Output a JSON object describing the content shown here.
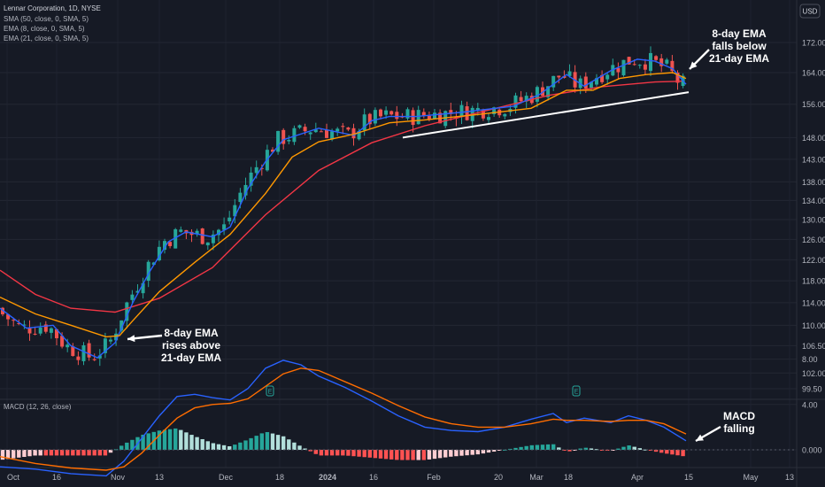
{
  "header": {
    "title": "Lennar Corporation, 1D, NYSE",
    "indicators": [
      "SMA (50, close, 0, SMA, 5)",
      "EMA (8, close, 0, SMA, 5)",
      "EMA (21, close, 0, SMA, 5)"
    ],
    "currency": "USD"
  },
  "macd_label": "MACD (12, 26, close)",
  "annotations": {
    "cross_up": [
      "8-day EMA",
      "rises above",
      "21-day EMA"
    ],
    "cross_down": [
      "8-day EMA",
      "falls below",
      "21-day EMA"
    ],
    "macd": [
      "MACD",
      "falling"
    ]
  },
  "earnings_marker": "E",
  "x_ticks": [
    "Oct",
    "16",
    "Nov",
    "13",
    "Dec",
    "18",
    "2024",
    "16",
    "Feb",
    "20",
    "Mar",
    "18",
    "Apr",
    "15",
    "May",
    "13"
  ],
  "colors": {
    "up": "#26a69a",
    "down": "#ef5350",
    "sma50": "#f23645",
    "ema8": "#2962ff",
    "ema21": "#ff9800",
    "macd_line": "#2962ff",
    "signal_line": "#ff6d00",
    "bg": "#161a25"
  },
  "chart_data": [
    {
      "type": "candlestick",
      "title": "Lennar Corporation, 1D, NYSE",
      "y_axis": {
        "scale": "log",
        "ticks": [
          99.5,
          102.0,
          106.5,
          110.0,
          114.0,
          118.0,
          122.0,
          126.0,
          130.0,
          134.0,
          138.0,
          143.0,
          148.0,
          156.0,
          164.0,
          172.0
        ]
      },
      "x_ticks": [
        "Oct",
        "16",
        "Nov",
        "13",
        "Dec",
        "18",
        "2024",
        "16",
        "Feb",
        "20",
        "Mar",
        "18",
        "Apr",
        "15",
        "May",
        "13"
      ],
      "series": [
        {
          "name": "SMA (50, close, 0, SMA, 5)",
          "points": [
            [
              0,
              120.0
            ],
            [
              40,
              115.5
            ],
            [
              80,
              113.0
            ],
            [
              130,
              112.3
            ],
            [
              180,
              114.8
            ],
            [
              240,
              120.5
            ],
            [
              300,
              131.0
            ],
            [
              360,
              140.5
            ],
            [
              420,
              146.8
            ],
            [
              480,
              150.8
            ],
            [
              560,
              155.0
            ],
            [
              620,
              158.2
            ],
            [
              680,
              160.4
            ],
            [
              740,
              161.6
            ],
            [
              770,
              161.8
            ]
          ]
        },
        {
          "name": "EMA (8, close, 0, SMA, 5)",
          "points": [
            [
              0,
              113.0
            ],
            [
              30,
              109.5
            ],
            [
              60,
              110.0
            ],
            [
              80,
              106.5
            ],
            [
              110,
              104.5
            ],
            [
              130,
              107.0
            ],
            [
              150,
              114.0
            ],
            [
              170,
              120.0
            ],
            [
              190,
              125.5
            ],
            [
              210,
              127.5
            ],
            [
              240,
              126.5
            ],
            [
              260,
              128.5
            ],
            [
              280,
              136.5
            ],
            [
              300,
              142.5
            ],
            [
              320,
              147.5
            ],
            [
              360,
              150.2
            ],
            [
              400,
              148.5
            ],
            [
              420,
              152.0
            ],
            [
              440,
              153.0
            ],
            [
              470,
              153.0
            ],
            [
              520,
              154.0
            ],
            [
              580,
              155.5
            ],
            [
              610,
              158.5
            ],
            [
              640,
              163.5
            ],
            [
              660,
              160.5
            ],
            [
              690,
              164.5
            ],
            [
              720,
              167.5
            ],
            [
              740,
              167.0
            ],
            [
              760,
              165.0
            ],
            [
              775,
              161.0
            ]
          ]
        },
        {
          "name": "EMA (21, close, 0, SMA, 5)",
          "points": [
            [
              0,
              115.0
            ],
            [
              40,
              112.0
            ],
            [
              80,
              110.0
            ],
            [
              120,
              108.0
            ],
            [
              135,
              108.2
            ],
            [
              150,
              110.8
            ],
            [
              180,
              116.0
            ],
            [
              220,
              121.5
            ],
            [
              260,
              127.0
            ],
            [
              300,
              135.5
            ],
            [
              330,
              143.5
            ],
            [
              360,
              147.0
            ],
            [
              400,
              148.8
            ],
            [
              440,
              151.5
            ],
            [
              480,
              152.2
            ],
            [
              540,
              153.5
            ],
            [
              600,
              155.0
            ],
            [
              640,
              159.5
            ],
            [
              670,
              159.5
            ],
            [
              700,
              162.5
            ],
            [
              730,
              163.5
            ],
            [
              760,
              164.0
            ],
            [
              775,
              162.5
            ]
          ]
        }
      ],
      "trendline": {
        "from": [
          "mid-January",
          148.0
        ],
        "to": [
          "mid-April",
          159.0
        ]
      },
      "annotations": [
        "8-day EMA rises above 21-day EMA",
        "8-day EMA falls below 21-day EMA"
      ]
    },
    {
      "type": "line",
      "title": "MACD (12, 26, close)",
      "y_axis": {
        "ticks": [
          8.0,
          4.0,
          0.0
        ]
      },
      "series": [
        {
          "name": "MACD",
          "points": [
            [
              0,
              -1.5
            ],
            [
              40,
              -1.7
            ],
            [
              80,
              -2.1
            ],
            [
              120,
              -2.3
            ],
            [
              140,
              -1.0
            ],
            [
              160,
              1.0
            ],
            [
              180,
              3.0
            ],
            [
              200,
              4.7
            ],
            [
              220,
              4.9
            ],
            [
              240,
              4.6
            ],
            [
              260,
              4.4
            ],
            [
              280,
              5.4
            ],
            [
              300,
              7.2
            ],
            [
              320,
              7.9
            ],
            [
              340,
              7.5
            ],
            [
              360,
              6.5
            ],
            [
              390,
              5.5
            ],
            [
              420,
              4.3
            ],
            [
              450,
              3.0
            ],
            [
              480,
              2.0
            ],
            [
              510,
              1.7
            ],
            [
              540,
              1.6
            ],
            [
              570,
              2.0
            ],
            [
              600,
              2.7
            ],
            [
              625,
              3.2
            ],
            [
              640,
              2.4
            ],
            [
              660,
              2.8
            ],
            [
              690,
              2.4
            ],
            [
              710,
              3.0
            ],
            [
              730,
              2.6
            ],
            [
              750,
              2.0
            ],
            [
              775,
              0.8
            ]
          ]
        },
        {
          "name": "Signal",
          "points": [
            [
              0,
              -0.6
            ],
            [
              40,
              -1.2
            ],
            [
              80,
              -1.6
            ],
            [
              120,
              -1.8
            ],
            [
              140,
              -1.5
            ],
            [
              160,
              -0.3
            ],
            [
              180,
              1.3
            ],
            [
              200,
              2.8
            ],
            [
              220,
              3.7
            ],
            [
              240,
              4.0
            ],
            [
              260,
              4.1
            ],
            [
              280,
              4.5
            ],
            [
              300,
              5.6
            ],
            [
              320,
              6.7
            ],
            [
              340,
              7.2
            ],
            [
              360,
              7.0
            ],
            [
              390,
              6.0
            ],
            [
              420,
              5.0
            ],
            [
              450,
              3.9
            ],
            [
              480,
              2.9
            ],
            [
              510,
              2.3
            ],
            [
              540,
              2.0
            ],
            [
              570,
              2.0
            ],
            [
              600,
              2.3
            ],
            [
              625,
              2.7
            ],
            [
              640,
              2.6
            ],
            [
              660,
              2.6
            ],
            [
              690,
              2.5
            ],
            [
              710,
              2.6
            ],
            [
              730,
              2.6
            ],
            [
              750,
              2.3
            ],
            [
              775,
              1.4
            ]
          ]
        }
      ],
      "annotation": "MACD falling"
    }
  ]
}
